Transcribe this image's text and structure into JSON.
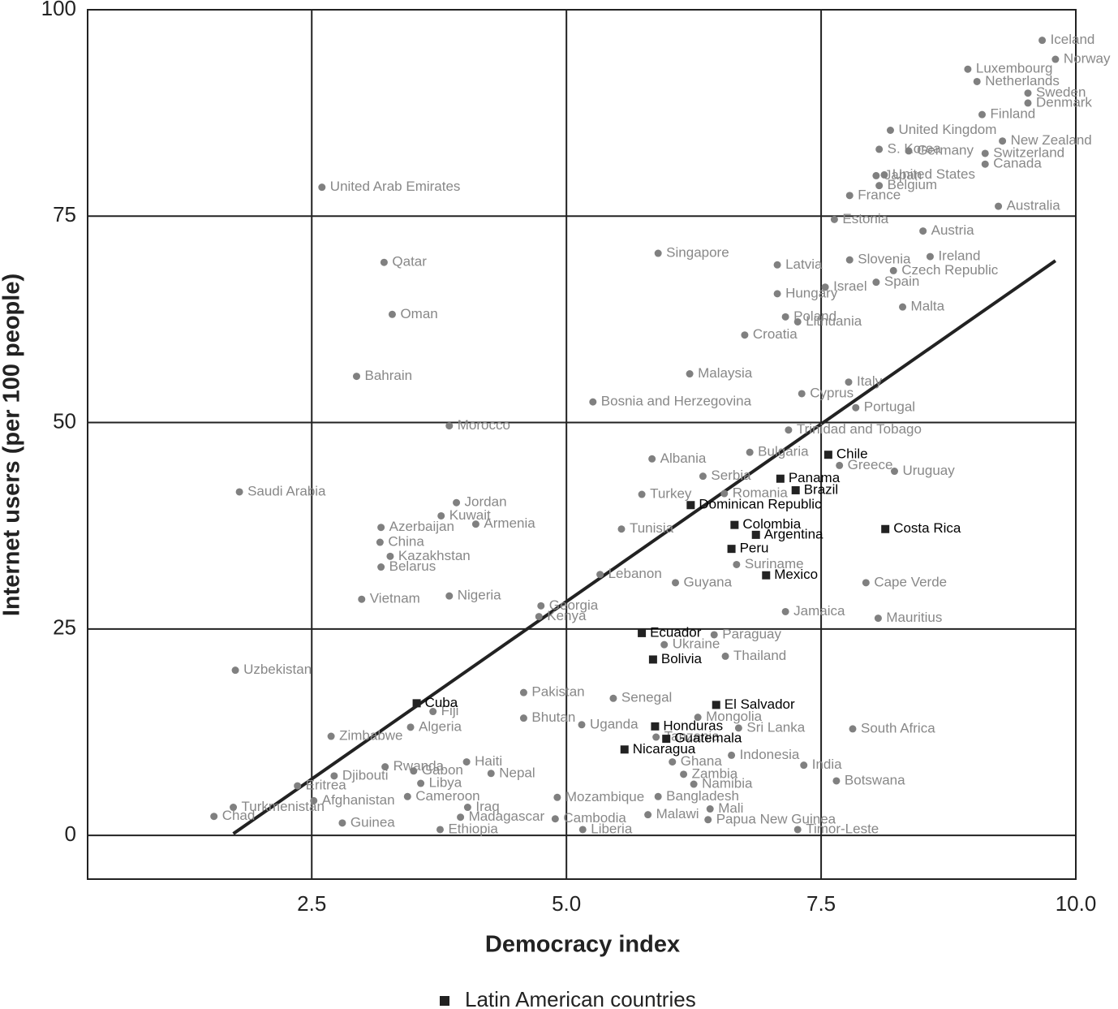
{
  "chart_data": {
    "type": "scatter",
    "xlabel": "Democracy index",
    "ylabel": "Internet users (per 100 people)",
    "xlim": [
      0.3,
      10
    ],
    "ylim": [
      -5.3,
      100
    ],
    "xticks": [
      2.5,
      {
        "value": 5,
        "label": "5.0"
      },
      7.5,
      {
        "value": 10,
        "label": "10.0"
      }
    ],
    "yticks": [
      0,
      25,
      50,
      75,
      100
    ],
    "grid": true,
    "trend_line": {
      "x": [
        1.73,
        9.8
      ],
      "y": [
        0.2,
        69.6
      ],
      "color": "#222222"
    },
    "series": [
      {
        "name": "Latin American countries",
        "marker": "square",
        "color": "#222222",
        "labels": [
          "Chile",
          "Panama",
          "Brazil",
          "Dominican Republic",
          "Colombia",
          "Argentina",
          "Costa Rica",
          "Peru",
          "Mexico",
          "Ecuador",
          "Bolivia",
          "Cuba",
          "El Salvador",
          "Honduras",
          "Guatemala",
          "Nicaragua"
        ],
        "x": [
          7.57,
          7.1,
          7.25,
          6.22,
          6.65,
          6.86,
          8.13,
          6.62,
          6.96,
          5.74,
          5.85,
          3.53,
          6.47,
          5.87,
          5.98,
          5.57
        ],
        "y": [
          46.1,
          43.2,
          41.8,
          40.0,
          37.6,
          36.4,
          37.1,
          34.7,
          31.5,
          24.5,
          21.3,
          16.0,
          15.8,
          13.2,
          11.7,
          10.4
        ]
      },
      {
        "marker": "circle",
        "color": "#808080",
        "labels": [
          "Iceland",
          "Norway",
          "Luxembourg",
          "Netherlands",
          "Sweden",
          "Denmark",
          "Finland",
          "United Kingdom",
          "S. Korea",
          "New Zealand",
          "Germany",
          "Switzerland",
          "Canada",
          "Japan",
          "United States",
          "Belgium",
          "France",
          "Australia",
          "United Arab Emirates",
          "Estonia",
          "Austria",
          "Singapore",
          "Ireland",
          "Slovenia",
          "Latvia",
          "Qatar",
          "Czech Republic",
          "Spain",
          "Israel",
          "Hungary",
          "Malta",
          "Poland",
          "Oman",
          "Lithuania",
          "Croatia",
          "Bahrain",
          "Malaysia",
          "Italy",
          "Cyprus",
          "Bosnia and Herzegovina",
          "Portugal",
          "Morocco",
          "Trinidad and Tobago",
          "Bulgaria",
          "Albania",
          "Greece",
          "Uruguay",
          "Serbia",
          "Saudi Arabia",
          "Turkey",
          "Romania",
          "Jordan",
          "Kuwait",
          "Armenia",
          "Azerbaijan",
          "Tunisia",
          "China",
          "Kazakhstan",
          "Suriname",
          "Belarus",
          "Lebanon",
          "Guyana",
          "Cape Verde",
          "Vietnam",
          "Nigeria",
          "Georgia",
          "Jamaica",
          "Kenya",
          "Mauritius",
          "Paraguay",
          "Ukraine",
          "Thailand",
          "Uzbekistan",
          "Pakistan",
          "Senegal",
          "Fiji",
          "Mongolia",
          "Bhutan",
          "Algeria",
          "Uganda",
          "Sri Lanka",
          "South Africa",
          "Zimbabwe",
          "Tanzania",
          "Indonesia",
          "Haiti",
          "Ghana",
          "India",
          "Rwanda",
          "Gabon",
          "Nepal",
          "Zambia",
          "Djibouti",
          "Botswana",
          "Libya",
          "Eritrea",
          "Namibia",
          "Cameroon",
          "Mozambique",
          "Bangladesh",
          "Afghanistan",
          "Iraq",
          "Turkmenistan",
          "Mali",
          "Cambodia",
          "Malawi",
          "Madagascar",
          "Chad",
          "Papua New Guinea",
          "Guinea",
          "Ethiopia",
          "Liberia",
          "Timor-Leste"
        ],
        "x": [
          9.67,
          9.8,
          8.94,
          9.03,
          9.53,
          9.53,
          9.08,
          8.18,
          8.07,
          9.28,
          8.36,
          9.11,
          9.11,
          8.04,
          8.12,
          8.07,
          7.78,
          9.24,
          2.6,
          7.63,
          8.5,
          5.9,
          8.57,
          7.78,
          7.07,
          3.21,
          8.21,
          8.04,
          7.54,
          7.07,
          8.3,
          7.15,
          3.29,
          7.27,
          6.75,
          2.94,
          6.21,
          7.77,
          7.31,
          5.26,
          7.84,
          3.85,
          7.18,
          6.8,
          5.84,
          7.68,
          8.22,
          6.34,
          1.79,
          5.74,
          6.55,
          3.92,
          3.77,
          4.11,
          3.18,
          5.54,
          3.17,
          3.27,
          6.67,
          3.18,
          5.33,
          6.07,
          7.94,
          2.99,
          3.85,
          4.75,
          7.15,
          4.73,
          8.06,
          6.45,
          5.96,
          6.56,
          1.75,
          4.58,
          5.46,
          3.69,
          6.29,
          4.58,
          3.47,
          5.15,
          6.69,
          7.81,
          2.69,
          5.88,
          6.62,
          4.02,
          6.04,
          7.33,
          3.22,
          3.5,
          4.26,
          6.15,
          2.72,
          7.65,
          3.57,
          2.36,
          6.25,
          3.44,
          4.91,
          5.9,
          2.52,
          4.03,
          1.73,
          6.41,
          4.89,
          5.8,
          3.96,
          1.54,
          6.39,
          2.8,
          3.76,
          5.16,
          7.27
        ],
        "y": [
          96.3,
          94.0,
          92.8,
          91.3,
          89.9,
          88.7,
          87.3,
          85.4,
          83.1,
          84.1,
          82.9,
          82.6,
          81.3,
          79.9,
          80.0,
          78.7,
          77.5,
          76.2,
          78.5,
          74.6,
          73.2,
          70.5,
          70.1,
          69.7,
          69.1,
          69.4,
          68.4,
          67.0,
          66.4,
          65.6,
          64.0,
          62.8,
          63.1,
          62.2,
          60.6,
          55.6,
          55.9,
          54.9,
          53.5,
          52.5,
          51.8,
          49.6,
          49.1,
          46.4,
          45.6,
          44.8,
          44.1,
          43.5,
          41.6,
          41.3,
          41.4,
          40.3,
          38.7,
          37.7,
          37.3,
          37.1,
          35.5,
          33.8,
          32.8,
          32.5,
          31.6,
          30.6,
          30.6,
          28.6,
          29.0,
          27.8,
          27.1,
          26.5,
          26.3,
          24.3,
          23.1,
          21.7,
          20.0,
          17.3,
          16.6,
          15.0,
          14.3,
          14.2,
          13.1,
          13.4,
          13.0,
          12.9,
          12.0,
          11.9,
          9.7,
          8.9,
          8.9,
          8.5,
          8.3,
          7.8,
          7.5,
          7.4,
          7.2,
          6.6,
          6.3,
          6.0,
          6.2,
          4.7,
          4.6,
          4.7,
          4.2,
          3.4,
          3.4,
          3.2,
          2.0,
          2.5,
          2.2,
          2.3,
          1.9,
          1.5,
          0.7,
          0.7,
          0.7
        ]
      }
    ]
  }
}
